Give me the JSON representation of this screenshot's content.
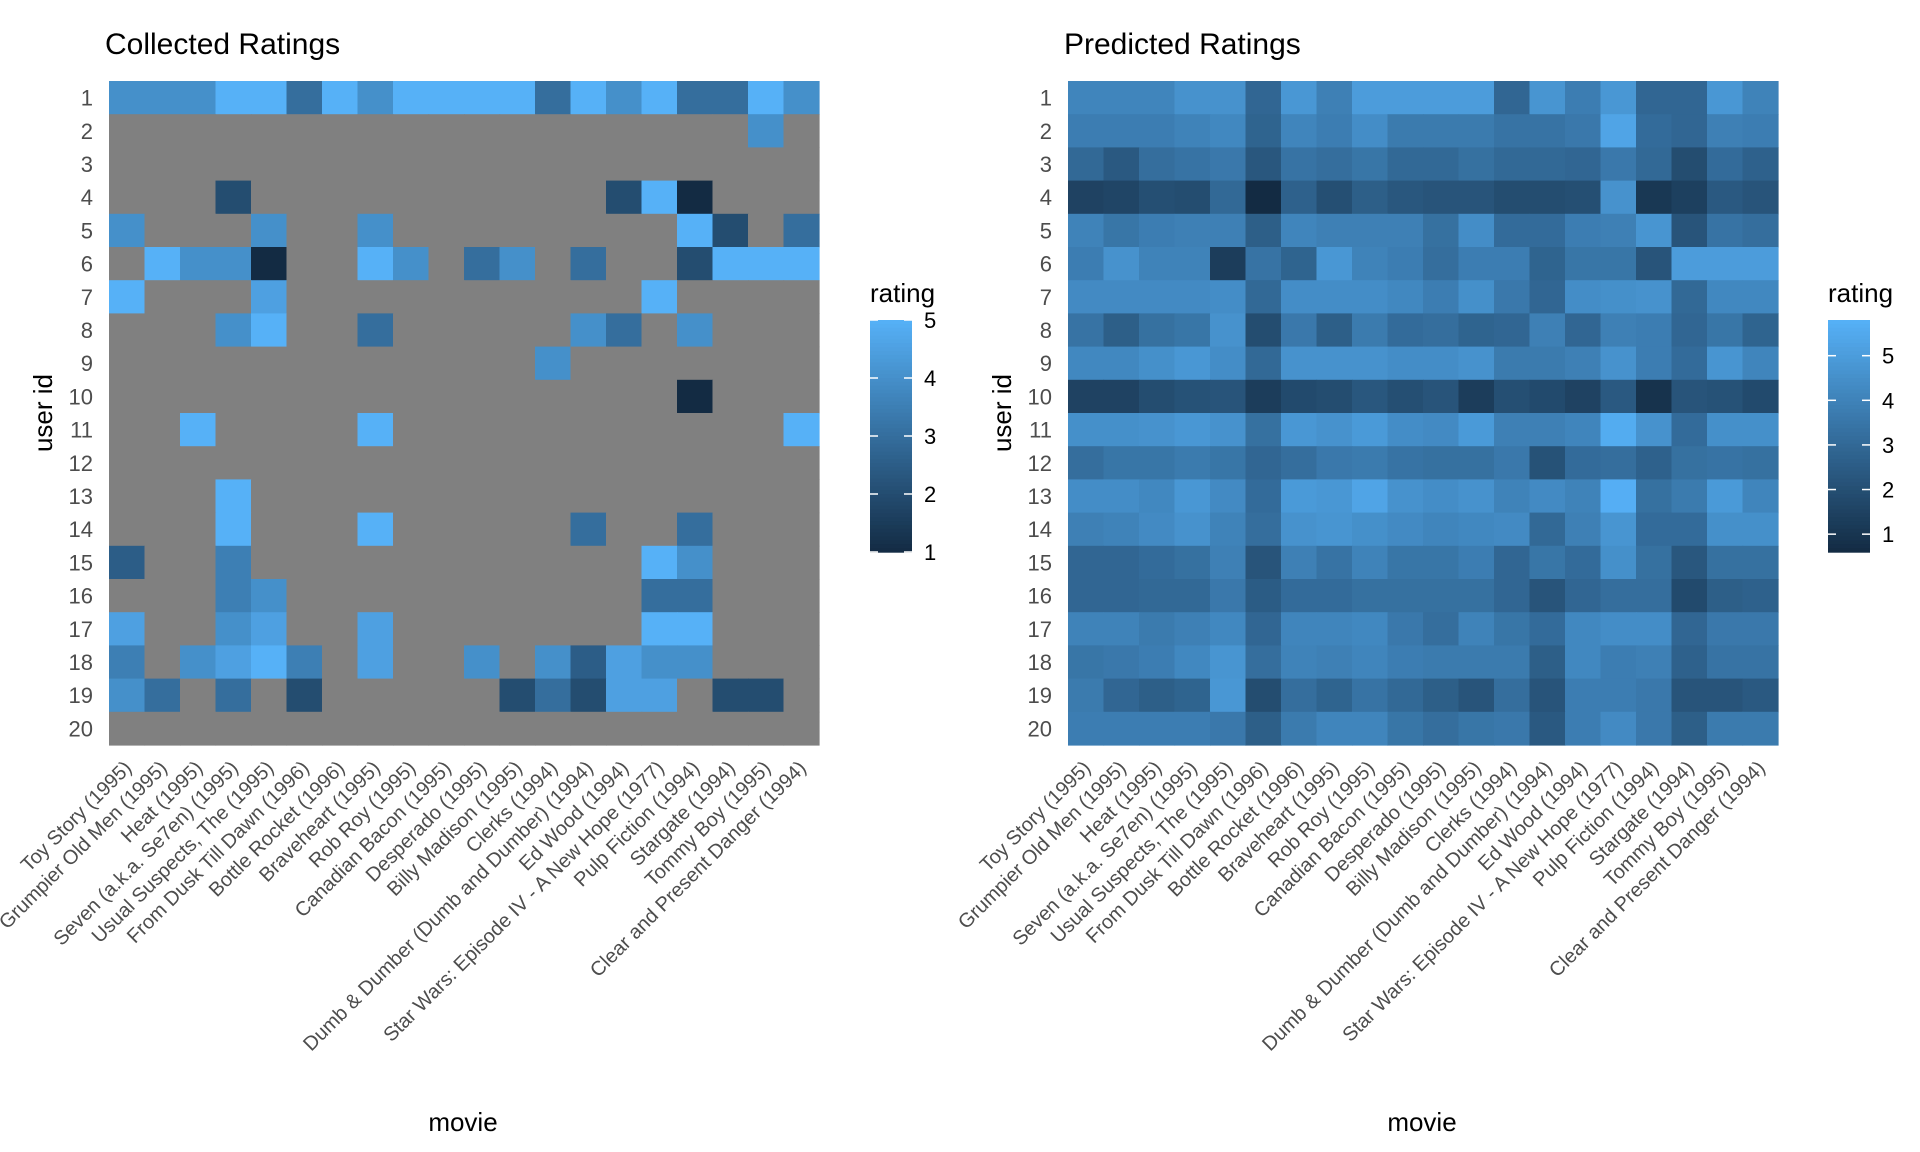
{
  "chart_data": [
    {
      "type": "heatmap",
      "title": "Collected Ratings",
      "xlabel": "movie",
      "ylabel": "user id",
      "legend_title": "rating",
      "legend_ticks": [
        1,
        2,
        3,
        4,
        5
      ],
      "color_range": [
        1,
        5
      ],
      "low_color": "#132b43",
      "high_color": "#56b1f7",
      "na_color": "#808080",
      "legend_position": "right",
      "x": [
        "Toy Story (1995)",
        "Grumpier Old Men (1995)",
        "Heat (1995)",
        "Seven (a.k.a. Se7en) (1995)",
        "Usual Suspects, The (1995)",
        "From Dusk Till Dawn (1996)",
        "Bottle Rocket (1996)",
        "Braveheart (1995)",
        "Rob Roy (1995)",
        "Canadian Bacon (1995)",
        "Desperado (1995)",
        "Billy Madison (1995)",
        "Clerks (1994)",
        "Dumb & Dumber (Dumb and Dumber) (1994)",
        "Ed Wood (1994)",
        "Star Wars: Episode IV - A New Hope (1977)",
        "Pulp Fiction (1994)",
        "Stargate (1994)",
        "Tommy Boy (1995)",
        "Clear and Present Danger (1994)"
      ],
      "y": [
        "1",
        "2",
        "3",
        "4",
        "5",
        "6",
        "7",
        "8",
        "9",
        "10",
        "11",
        "12",
        "13",
        "14",
        "15",
        "16",
        "17",
        "18",
        "19",
        "20"
      ],
      "z": [
        [
          4,
          4,
          4,
          5,
          5,
          3,
          5,
          4,
          5,
          5,
          5,
          5,
          3,
          5,
          4,
          5,
          3,
          3,
          5,
          4
        ],
        [
          null,
          null,
          null,
          null,
          null,
          null,
          null,
          null,
          null,
          null,
          null,
          null,
          null,
          null,
          null,
          null,
          null,
          null,
          4,
          null
        ],
        [
          null,
          null,
          null,
          null,
          null,
          null,
          null,
          null,
          null,
          null,
          null,
          null,
          null,
          null,
          null,
          null,
          null,
          null,
          null,
          null
        ],
        [
          null,
          null,
          null,
          2,
          null,
          null,
          null,
          null,
          null,
          null,
          null,
          null,
          null,
          null,
          2,
          5,
          1,
          null,
          null,
          null
        ],
        [
          4,
          null,
          null,
          null,
          4,
          null,
          null,
          4,
          null,
          null,
          null,
          null,
          null,
          null,
          null,
          null,
          5,
          2,
          null,
          3
        ],
        [
          null,
          5,
          4,
          4,
          1,
          null,
          null,
          5,
          4,
          null,
          3,
          4,
          null,
          3,
          null,
          null,
          2,
          5,
          5,
          5
        ],
        [
          5,
          null,
          null,
          null,
          4.5,
          null,
          null,
          null,
          null,
          null,
          null,
          null,
          null,
          null,
          null,
          5,
          null,
          null,
          null,
          null
        ],
        [
          null,
          null,
          null,
          4,
          5,
          null,
          null,
          3,
          null,
          null,
          null,
          null,
          null,
          4,
          3,
          null,
          4,
          null,
          null,
          null
        ],
        [
          null,
          null,
          null,
          null,
          null,
          null,
          null,
          null,
          null,
          null,
          null,
          null,
          4,
          null,
          null,
          null,
          null,
          null,
          null,
          null
        ],
        [
          null,
          null,
          null,
          null,
          null,
          null,
          null,
          null,
          null,
          null,
          null,
          null,
          null,
          null,
          null,
          null,
          1,
          null,
          null,
          null
        ],
        [
          null,
          null,
          5,
          null,
          null,
          null,
          null,
          5,
          null,
          null,
          null,
          null,
          null,
          null,
          null,
          null,
          null,
          null,
          null,
          5
        ],
        [
          null,
          null,
          null,
          null,
          null,
          null,
          null,
          null,
          null,
          null,
          null,
          null,
          null,
          null,
          null,
          null,
          null,
          null,
          null,
          null
        ],
        [
          null,
          null,
          null,
          5,
          null,
          null,
          null,
          null,
          null,
          null,
          null,
          null,
          null,
          null,
          null,
          null,
          null,
          null,
          null,
          null
        ],
        [
          null,
          null,
          null,
          5,
          null,
          null,
          null,
          5,
          null,
          null,
          null,
          null,
          null,
          3,
          null,
          null,
          3,
          null,
          null,
          null
        ],
        [
          2.5,
          null,
          null,
          3.5,
          null,
          null,
          null,
          null,
          null,
          null,
          null,
          null,
          null,
          null,
          null,
          5,
          4,
          null,
          null,
          null
        ],
        [
          null,
          null,
          null,
          3.5,
          4,
          null,
          null,
          null,
          null,
          null,
          null,
          null,
          null,
          null,
          null,
          3,
          3,
          null,
          null,
          null
        ],
        [
          4.5,
          null,
          null,
          4,
          4.5,
          null,
          null,
          4.5,
          null,
          null,
          null,
          null,
          null,
          null,
          null,
          5,
          5,
          null,
          null,
          null
        ],
        [
          3.5,
          null,
          4,
          4.5,
          5,
          3.5,
          null,
          4.5,
          null,
          null,
          4,
          null,
          4,
          2.5,
          4.5,
          4,
          4,
          null,
          null,
          null
        ],
        [
          4,
          3,
          null,
          3,
          null,
          2,
          null,
          null,
          null,
          null,
          null,
          2,
          3,
          2,
          4.5,
          4.5,
          null,
          2,
          2,
          null
        ],
        [
          null,
          null,
          null,
          null,
          null,
          null,
          null,
          null,
          null,
          null,
          null,
          null,
          null,
          null,
          null,
          null,
          null,
          null,
          null,
          null
        ]
      ]
    },
    {
      "type": "heatmap",
      "title": "Predicted Ratings",
      "xlabel": "movie",
      "ylabel": "user id",
      "legend_title": "rating",
      "legend_ticks": [
        1,
        2,
        3,
        4,
        5
      ],
      "color_range": [
        0.6,
        5.8
      ],
      "low_color": "#132b43",
      "high_color": "#56b1f7",
      "legend_position": "right",
      "x": [
        "Toy Story (1995)",
        "Grumpier Old Men (1995)",
        "Heat (1995)",
        "Seven (a.k.a. Se7en) (1995)",
        "Usual Suspects, The (1995)",
        "From Dusk Till Dawn (1996)",
        "Bottle Rocket (1996)",
        "Braveheart (1995)",
        "Rob Roy (1995)",
        "Canadian Bacon (1995)",
        "Desperado (1995)",
        "Billy Madison (1995)",
        "Clerks (1994)",
        "Dumb & Dumber (Dumb and Dumber) (1994)",
        "Ed Wood (1994)",
        "Star Wars: Episode IV - A New Hope (1977)",
        "Pulp Fiction (1994)",
        "Stargate (1994)",
        "Tommy Boy (1995)",
        "Clear and Present Danger (1994)"
      ],
      "y": [
        "1",
        "2",
        "3",
        "4",
        "5",
        "6",
        "7",
        "8",
        "9",
        "10",
        "11",
        "12",
        "13",
        "14",
        "15",
        "16",
        "17",
        "18",
        "19",
        "20"
      ],
      "z": [
        [
          4.1,
          4.1,
          4.1,
          4.6,
          4.6,
          2.9,
          4.8,
          3.9,
          5.0,
          5.0,
          5.0,
          5.0,
          2.9,
          4.7,
          3.8,
          4.8,
          2.9,
          2.9,
          4.8,
          4.0
        ],
        [
          3.8,
          3.8,
          3.8,
          4.0,
          4.2,
          2.8,
          4.1,
          3.8,
          4.4,
          3.7,
          3.7,
          3.7,
          3.4,
          3.4,
          3.6,
          5.3,
          3.1,
          2.9,
          3.9,
          3.8
        ],
        [
          3.0,
          2.4,
          3.2,
          3.4,
          3.6,
          2.3,
          3.4,
          3.2,
          3.5,
          3.0,
          3.0,
          3.3,
          3.0,
          3.0,
          2.9,
          3.6,
          3.0,
          1.9,
          3.1,
          2.7
        ],
        [
          1.5,
          1.6,
          2.0,
          1.9,
          3.0,
          0.6,
          2.7,
          2.0,
          2.6,
          2.3,
          2.2,
          2.2,
          1.9,
          1.9,
          2.0,
          4.6,
          1.1,
          1.4,
          2.4,
          2.2
        ],
        [
          4.0,
          3.5,
          3.8,
          3.9,
          3.9,
          2.6,
          4.1,
          3.9,
          3.9,
          3.9,
          3.3,
          4.4,
          3.1,
          3.1,
          3.8,
          3.9,
          4.7,
          2.2,
          3.4,
          3.2
        ],
        [
          3.8,
          4.6,
          4.0,
          4.0,
          1.3,
          3.4,
          2.8,
          4.8,
          4.0,
          3.8,
          3.2,
          3.8,
          3.8,
          2.8,
          3.5,
          3.5,
          2.2,
          5.0,
          5.0,
          5.0
        ],
        [
          4.3,
          4.3,
          4.3,
          4.3,
          4.4,
          3.0,
          4.4,
          4.4,
          4.4,
          4.2,
          3.8,
          4.5,
          3.6,
          2.9,
          4.4,
          4.5,
          4.6,
          3.0,
          4.2,
          4.2
        ],
        [
          3.4,
          2.6,
          3.3,
          3.5,
          4.6,
          1.9,
          3.6,
          2.6,
          3.7,
          3.1,
          3.2,
          2.8,
          2.9,
          3.9,
          2.9,
          3.9,
          3.8,
          2.9,
          3.5,
          2.8
        ],
        [
          4.2,
          4.2,
          4.5,
          4.8,
          4.4,
          3.0,
          4.6,
          4.6,
          4.6,
          4.4,
          4.4,
          4.6,
          3.7,
          3.7,
          3.9,
          4.6,
          3.8,
          3.1,
          4.7,
          4.1
        ],
        [
          1.5,
          1.5,
          1.9,
          2.1,
          2.2,
          1.3,
          1.8,
          1.9,
          2.3,
          2.0,
          2.2,
          1.3,
          2.0,
          1.8,
          1.5,
          2.4,
          0.9,
          2.2,
          2.1,
          1.8
        ],
        [
          4.5,
          4.5,
          4.6,
          4.8,
          4.6,
          3.3,
          4.8,
          4.6,
          4.9,
          4.4,
          4.3,
          4.9,
          3.9,
          3.9,
          4.1,
          5.6,
          4.6,
          3.1,
          4.5,
          4.5
        ],
        [
          3.2,
          3.5,
          3.5,
          3.7,
          3.5,
          2.9,
          3.2,
          3.6,
          3.7,
          3.4,
          3.3,
          3.3,
          3.6,
          2.1,
          3.1,
          3.2,
          2.7,
          3.3,
          3.4,
          3.3
        ],
        [
          4.4,
          4.4,
          4.2,
          4.8,
          4.3,
          3.1,
          4.9,
          4.8,
          5.3,
          4.6,
          4.4,
          4.6,
          4.0,
          4.3,
          4.0,
          5.7,
          3.3,
          3.7,
          4.9,
          4.1
        ],
        [
          3.9,
          4.0,
          4.3,
          4.6,
          4.0,
          3.2,
          4.6,
          4.7,
          4.5,
          4.3,
          4.1,
          4.2,
          4.3,
          3.0,
          3.9,
          4.7,
          3.1,
          3.1,
          4.5,
          4.5
        ],
        [
          2.9,
          2.9,
          3.1,
          3.3,
          3.9,
          2.2,
          3.9,
          3.4,
          4.0,
          3.5,
          3.5,
          3.8,
          2.9,
          3.5,
          3.1,
          4.5,
          3.3,
          2.3,
          3.3,
          3.3
        ],
        [
          2.9,
          2.9,
          3.0,
          3.0,
          3.6,
          2.5,
          3.1,
          3.1,
          3.3,
          3.3,
          3.3,
          3.3,
          2.9,
          2.2,
          2.9,
          3.2,
          3.2,
          1.8,
          2.6,
          2.7
        ],
        [
          4.0,
          4.0,
          3.7,
          3.9,
          4.2,
          2.9,
          4.1,
          4.1,
          4.2,
          3.6,
          3.2,
          4.0,
          3.5,
          3.1,
          4.2,
          4.4,
          4.4,
          2.9,
          3.6,
          3.6
        ],
        [
          3.5,
          3.6,
          3.8,
          4.2,
          4.7,
          3.2,
          4.0,
          3.9,
          4.1,
          3.8,
          3.7,
          3.7,
          3.7,
          2.6,
          4.2,
          3.8,
          3.9,
          2.7,
          3.4,
          3.4
        ],
        [
          3.7,
          2.9,
          2.6,
          2.8,
          4.8,
          1.9,
          3.2,
          2.8,
          3.4,
          3.0,
          2.6,
          2.2,
          3.2,
          2.2,
          3.8,
          3.8,
          3.6,
          2.2,
          2.2,
          2.4
        ],
        [
          3.8,
          3.8,
          3.8,
          3.8,
          3.6,
          2.6,
          3.7,
          4.1,
          4.1,
          3.5,
          3.2,
          3.5,
          3.6,
          2.4,
          3.8,
          4.3,
          3.6,
          2.6,
          3.7,
          3.7
        ]
      ]
    }
  ]
}
